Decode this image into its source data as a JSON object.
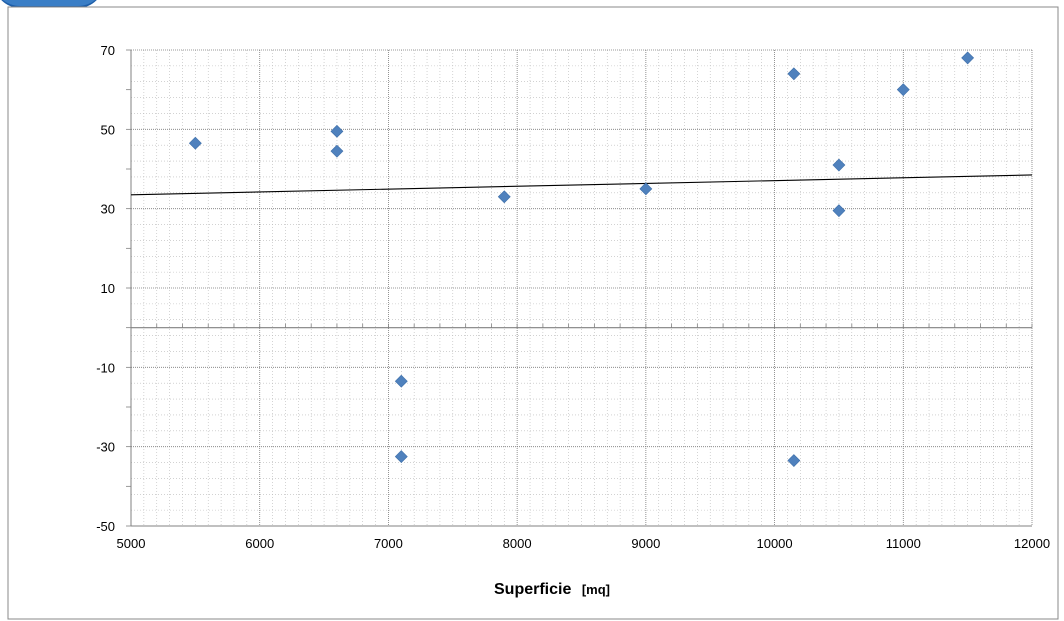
{
  "chart_data": {
    "type": "scatter",
    "title": "",
    "xlabel": "Superficie",
    "xlabel_unit": "[mq]",
    "ylabel": "",
    "xlim": [
      5000,
      12000
    ],
    "ylim": [
      -50,
      70
    ],
    "x_ticks": [
      5000,
      6000,
      7000,
      8000,
      9000,
      10000,
      11000,
      12000
    ],
    "y_ticks": [
      70,
      50,
      30,
      10,
      -10,
      -30,
      -50
    ],
    "grid": true,
    "legend": "none",
    "marker": "diamond",
    "marker_color": "#4f81bd",
    "series": [
      {
        "points": [
          {
            "x": 5500,
            "y": 46.5
          },
          {
            "x": 6600,
            "y": 49.5
          },
          {
            "x": 6600,
            "y": 44.5
          },
          {
            "x": 7100,
            "y": -13.5
          },
          {
            "x": 7100,
            "y": -32.5
          },
          {
            "x": 7900,
            "y": 33
          },
          {
            "x": 9000,
            "y": 35
          },
          {
            "x": 10150,
            "y": 64
          },
          {
            "x": 10150,
            "y": -33.5
          },
          {
            "x": 10500,
            "y": 41
          },
          {
            "x": 10500,
            "y": 29.5
          },
          {
            "x": 11000,
            "y": 60
          },
          {
            "x": 11500,
            "y": 68
          }
        ]
      }
    ],
    "trendline": {
      "type": "linear",
      "color": "#000000",
      "start": {
        "x": 5000,
        "y": 33.5
      },
      "end": {
        "x": 12000,
        "y": 38.5
      }
    }
  }
}
